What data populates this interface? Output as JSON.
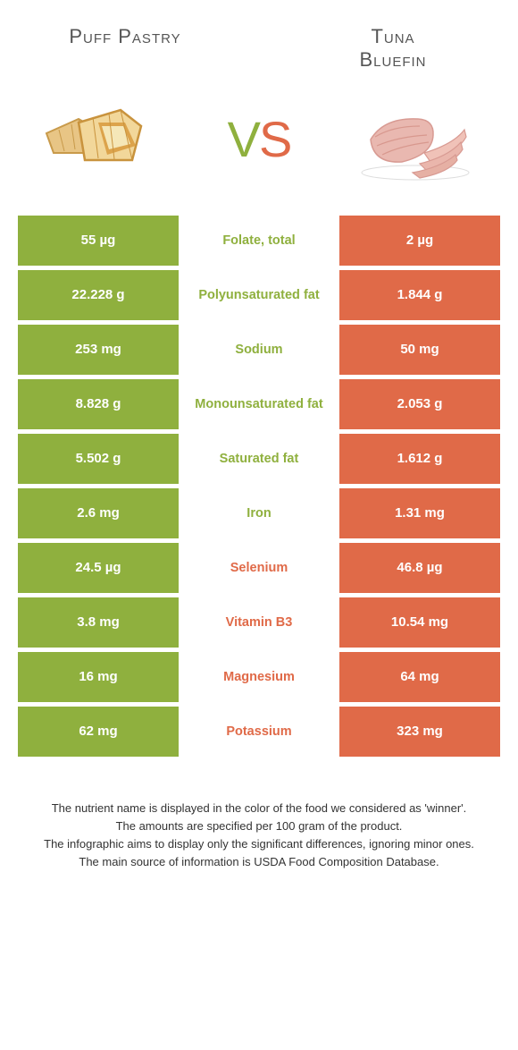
{
  "colors": {
    "puff": "#8fb03e",
    "tuna": "#e06a48",
    "white": "#ffffff",
    "text": "#333333"
  },
  "header": {
    "left": "Puff Pastry",
    "right_line1": "Tuna",
    "right_line2": "Bluefin"
  },
  "vs": {
    "text": "VS"
  },
  "rows": [
    {
      "label": "Folate, total",
      "left": "55 µg",
      "right": "2 µg",
      "winner": "puff"
    },
    {
      "label": "Polyunsaturated fat",
      "left": "22.228 g",
      "right": "1.844 g",
      "winner": "puff"
    },
    {
      "label": "Sodium",
      "left": "253 mg",
      "right": "50 mg",
      "winner": "puff"
    },
    {
      "label": "Monounsaturated fat",
      "left": "8.828 g",
      "right": "2.053 g",
      "winner": "puff"
    },
    {
      "label": "Saturated fat",
      "left": "5.502 g",
      "right": "1.612 g",
      "winner": "puff"
    },
    {
      "label": "Iron",
      "left": "2.6 mg",
      "right": "1.31 mg",
      "winner": "puff"
    },
    {
      "label": "Selenium",
      "left": "24.5 µg",
      "right": "46.8 µg",
      "winner": "tuna"
    },
    {
      "label": "Vitamin B3",
      "left": "3.8 mg",
      "right": "10.54 mg",
      "winner": "tuna"
    },
    {
      "label": "Magnesium",
      "left": "16 mg",
      "right": "64 mg",
      "winner": "tuna"
    },
    {
      "label": "Potassium",
      "left": "62 mg",
      "right": "323 mg",
      "winner": "tuna"
    }
  ],
  "footer": {
    "line1": "The nutrient name is displayed in the color of the food we considered as 'winner'.",
    "line2": "The amounts are specified per 100 gram of the product.",
    "line3": "The infographic aims to display only the significant differences, ignoring minor ones.",
    "line4": "The main source of information is USDA Food Composition Database."
  }
}
